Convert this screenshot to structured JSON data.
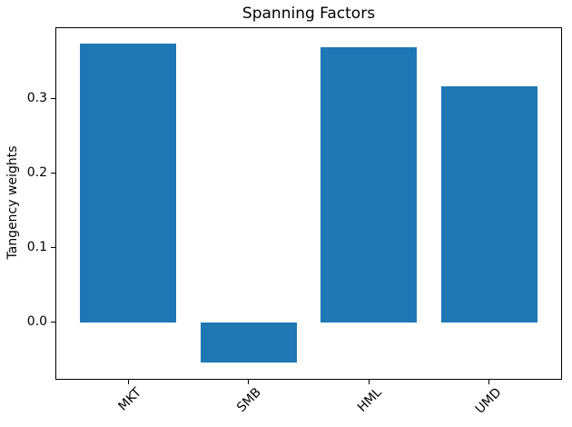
{
  "chart_data": {
    "type": "bar",
    "title": "Spanning Factors",
    "ylabel": "Tangency weights",
    "xlabel": "",
    "categories": [
      "MKT",
      "SMB",
      "HML",
      "UMD"
    ],
    "values": [
      0.373,
      -0.054,
      0.369,
      0.316
    ],
    "bar_color": "#1f77b4",
    "bar_width": 0.8,
    "xlim": [
      -0.6,
      3.6
    ],
    "ylim": [
      -0.076,
      0.394
    ],
    "yticks": [
      0.0,
      0.1,
      0.2,
      0.3
    ],
    "ytick_labels": [
      "0.0",
      "0.1",
      "0.2",
      "0.3"
    ],
    "xtick_rotation_deg": 45,
    "grid": false,
    "legend_position": "none",
    "spine_color": "#000000",
    "background_color": "#ffffff"
  }
}
